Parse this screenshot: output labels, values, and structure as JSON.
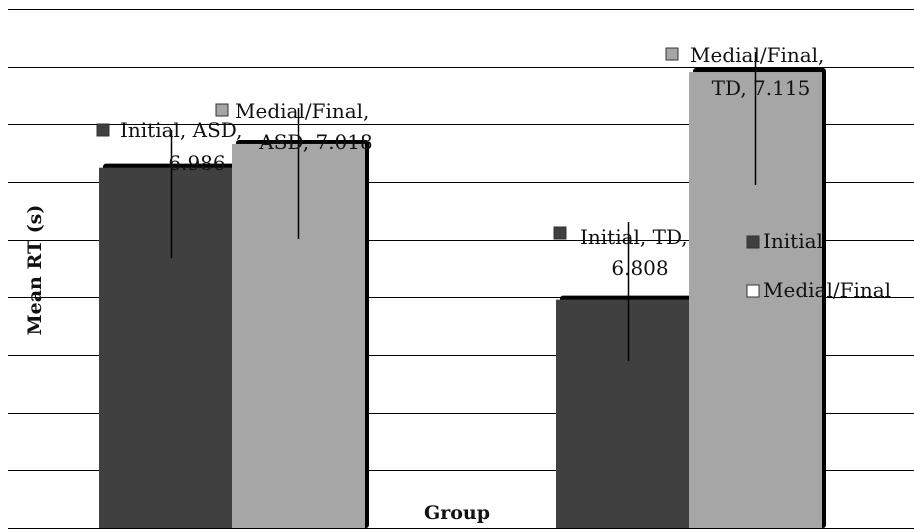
{
  "chart_data": {
    "type": "bar",
    "title": "",
    "xlabel": "Group",
    "ylabel": "Mean RT (s)",
    "categories": [
      "ASD",
      "TD"
    ],
    "series": [
      {
        "name": "Initial",
        "values": [
          6.986,
          6.808
        ],
        "color": "#404040"
      },
      {
        "name": "Medial/Final",
        "values": [
          7.018,
          7.115
        ],
        "color": "#a6a6a6"
      }
    ],
    "data_labels": [
      [
        "Initial, ASD,",
        "6.986"
      ],
      [
        "Medial/Final,",
        "ASD, 7.018"
      ],
      [
        "Initial, TD,",
        "6.808"
      ],
      [
        "Medial/Final,",
        "TD, 7.115"
      ]
    ],
    "ylim": [
      6.5,
      7.2
    ],
    "grid": true,
    "legend": {
      "position": "right",
      "entries": [
        "Initial",
        "Medial/Final"
      ]
    },
    "colors": {
      "initial": "#404040",
      "medial_final": "#a6a6a6",
      "grid": "#000000",
      "error_bar": "#000000"
    }
  }
}
